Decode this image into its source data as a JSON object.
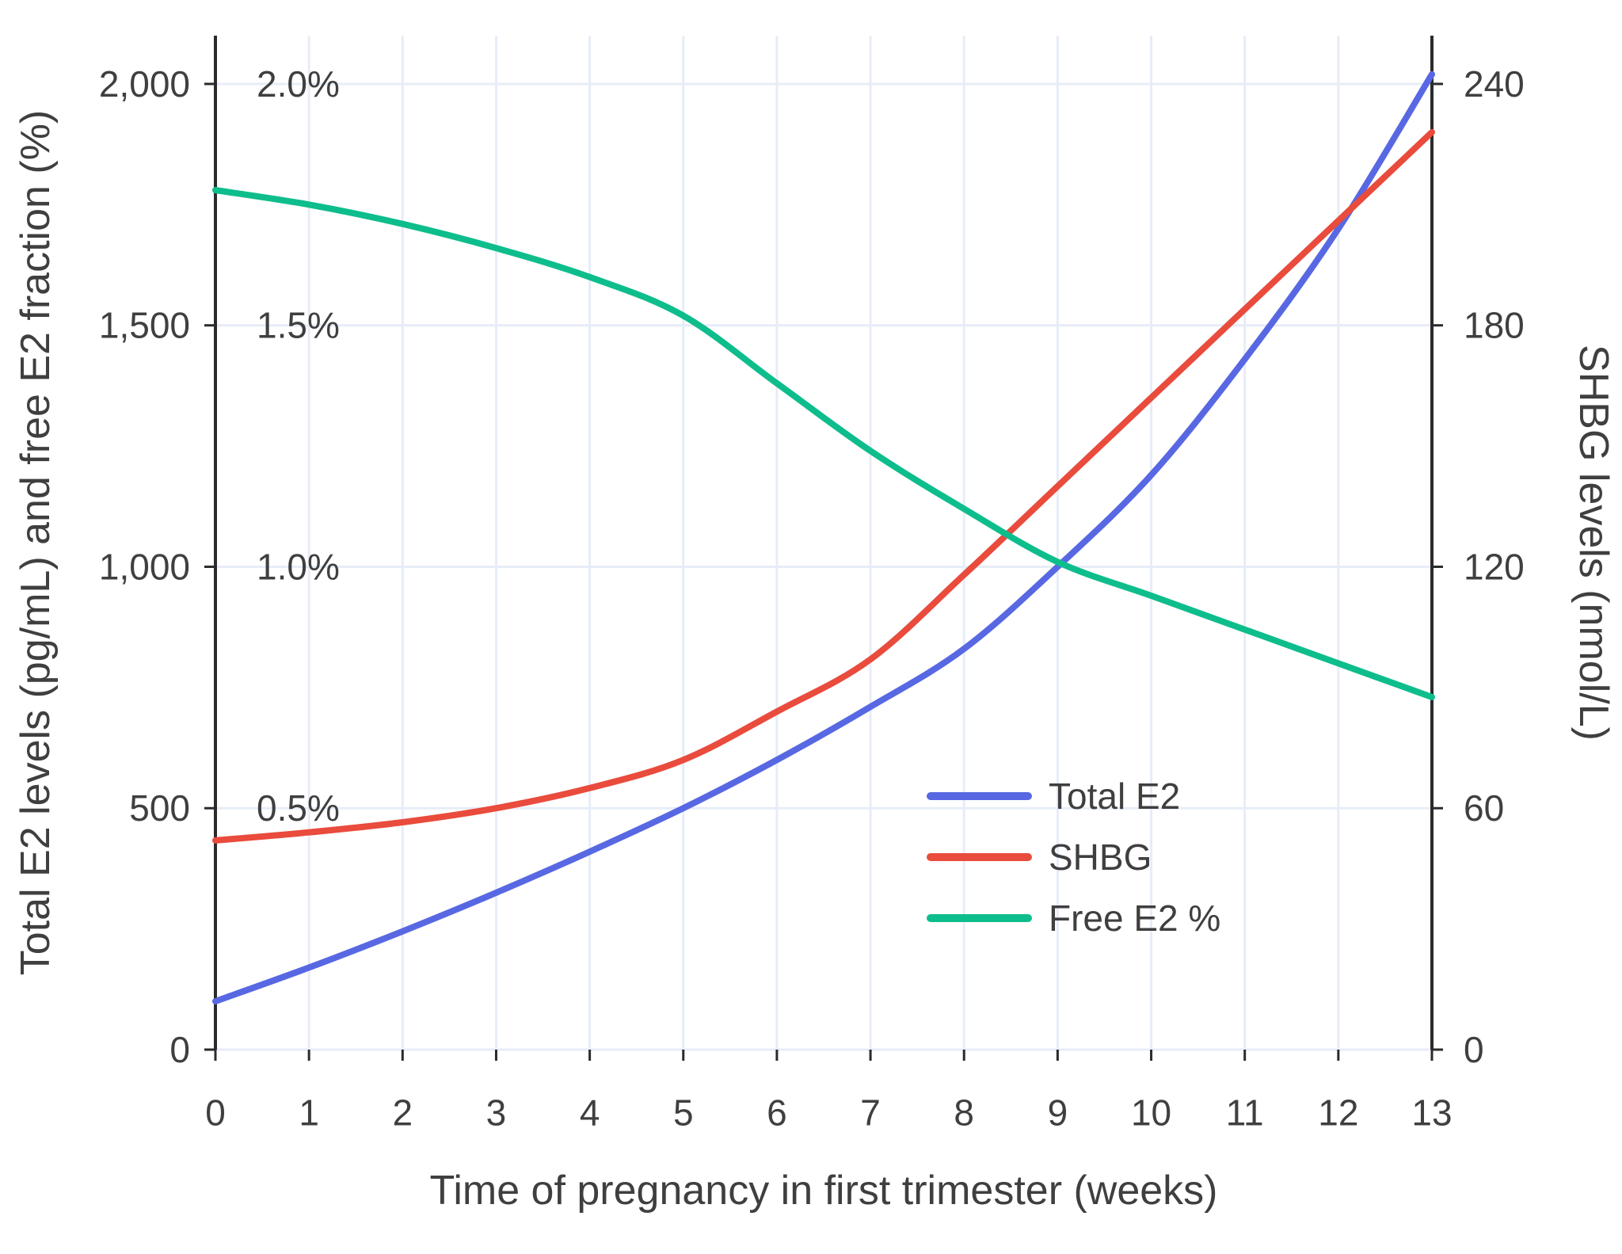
{
  "chart_data": {
    "type": "line",
    "title": "",
    "xlabel": "Time of pregnancy in first trimester (weeks)",
    "ylabel_left": "Total E2 levels (pg/mL) and free E2 fraction (%)",
    "ylabel_right": "SHBG levels (nmol/L)",
    "x": [
      0,
      1,
      2,
      3,
      4,
      5,
      6,
      7,
      8,
      9,
      10,
      11,
      12,
      13
    ],
    "xlim": [
      0,
      13
    ],
    "ylim_left": [
      0,
      2100
    ],
    "ylim_right": [
      0,
      252
    ],
    "pct_scale": 1000,
    "x_ticks": [
      {
        "value": 0,
        "label": "0"
      },
      {
        "value": 1,
        "label": "1"
      },
      {
        "value": 2,
        "label": "2"
      },
      {
        "value": 3,
        "label": "3"
      },
      {
        "value": 4,
        "label": "4"
      },
      {
        "value": 5,
        "label": "5"
      },
      {
        "value": 6,
        "label": "6"
      },
      {
        "value": 7,
        "label": "7"
      },
      {
        "value": 8,
        "label": "8"
      },
      {
        "value": 9,
        "label": "9"
      },
      {
        "value": 10,
        "label": "10"
      },
      {
        "value": 11,
        "label": "11"
      },
      {
        "value": 12,
        "label": "12"
      },
      {
        "value": 13,
        "label": "13"
      }
    ],
    "left_ticks": [
      {
        "value": 0,
        "label": "0"
      },
      {
        "value": 500,
        "label": "500"
      },
      {
        "value": 1000,
        "label": "1,000"
      },
      {
        "value": 1500,
        "label": "1,500"
      },
      {
        "value": 2000,
        "label": "2,000"
      }
    ],
    "right_ticks": [
      {
        "value": 0,
        "label": "0"
      },
      {
        "value": 60,
        "label": "60"
      },
      {
        "value": 120,
        "label": "120"
      },
      {
        "value": 180,
        "label": "180"
      },
      {
        "value": 240,
        "label": "240"
      }
    ],
    "percent_labels": [
      {
        "value": 500,
        "label": "0.5%"
      },
      {
        "value": 1000,
        "label": "1.0%"
      },
      {
        "value": 1500,
        "label": "1.5%"
      },
      {
        "value": 2000,
        "label": "2.0%"
      }
    ],
    "series": [
      {
        "name": "Total E2",
        "axis": "left",
        "color": "#5868e3",
        "values": [
          100,
          170,
          245,
          325,
          410,
          500,
          600,
          710,
          830,
          1000,
          1190,
          1430,
          1700,
          2020
        ]
      },
      {
        "name": "SHBG",
        "axis": "right",
        "color": "#e94b3c",
        "values": [
          52,
          54,
          56.5,
          60,
          65,
          72,
          84,
          97,
          118,
          140,
          162,
          184,
          206,
          228
        ]
      },
      {
        "name": "Free E2 %",
        "axis": "left_pct",
        "color": "#0ebd8c",
        "values": [
          1.78,
          1.75,
          1.71,
          1.66,
          1.6,
          1.52,
          1.38,
          1.24,
          1.12,
          1.01,
          0.94,
          0.87,
          0.8,
          0.73
        ]
      }
    ],
    "legend": {
      "position": "inside-right-bottom",
      "items": [
        "Total E2",
        "SHBG",
        "Free E2 %"
      ]
    },
    "grid": true,
    "style": {
      "grid_color": "#e7edf7",
      "axis_color": "#2b2b2b",
      "text_color": "#3f3f3f",
      "background": "#ffffff"
    }
  }
}
